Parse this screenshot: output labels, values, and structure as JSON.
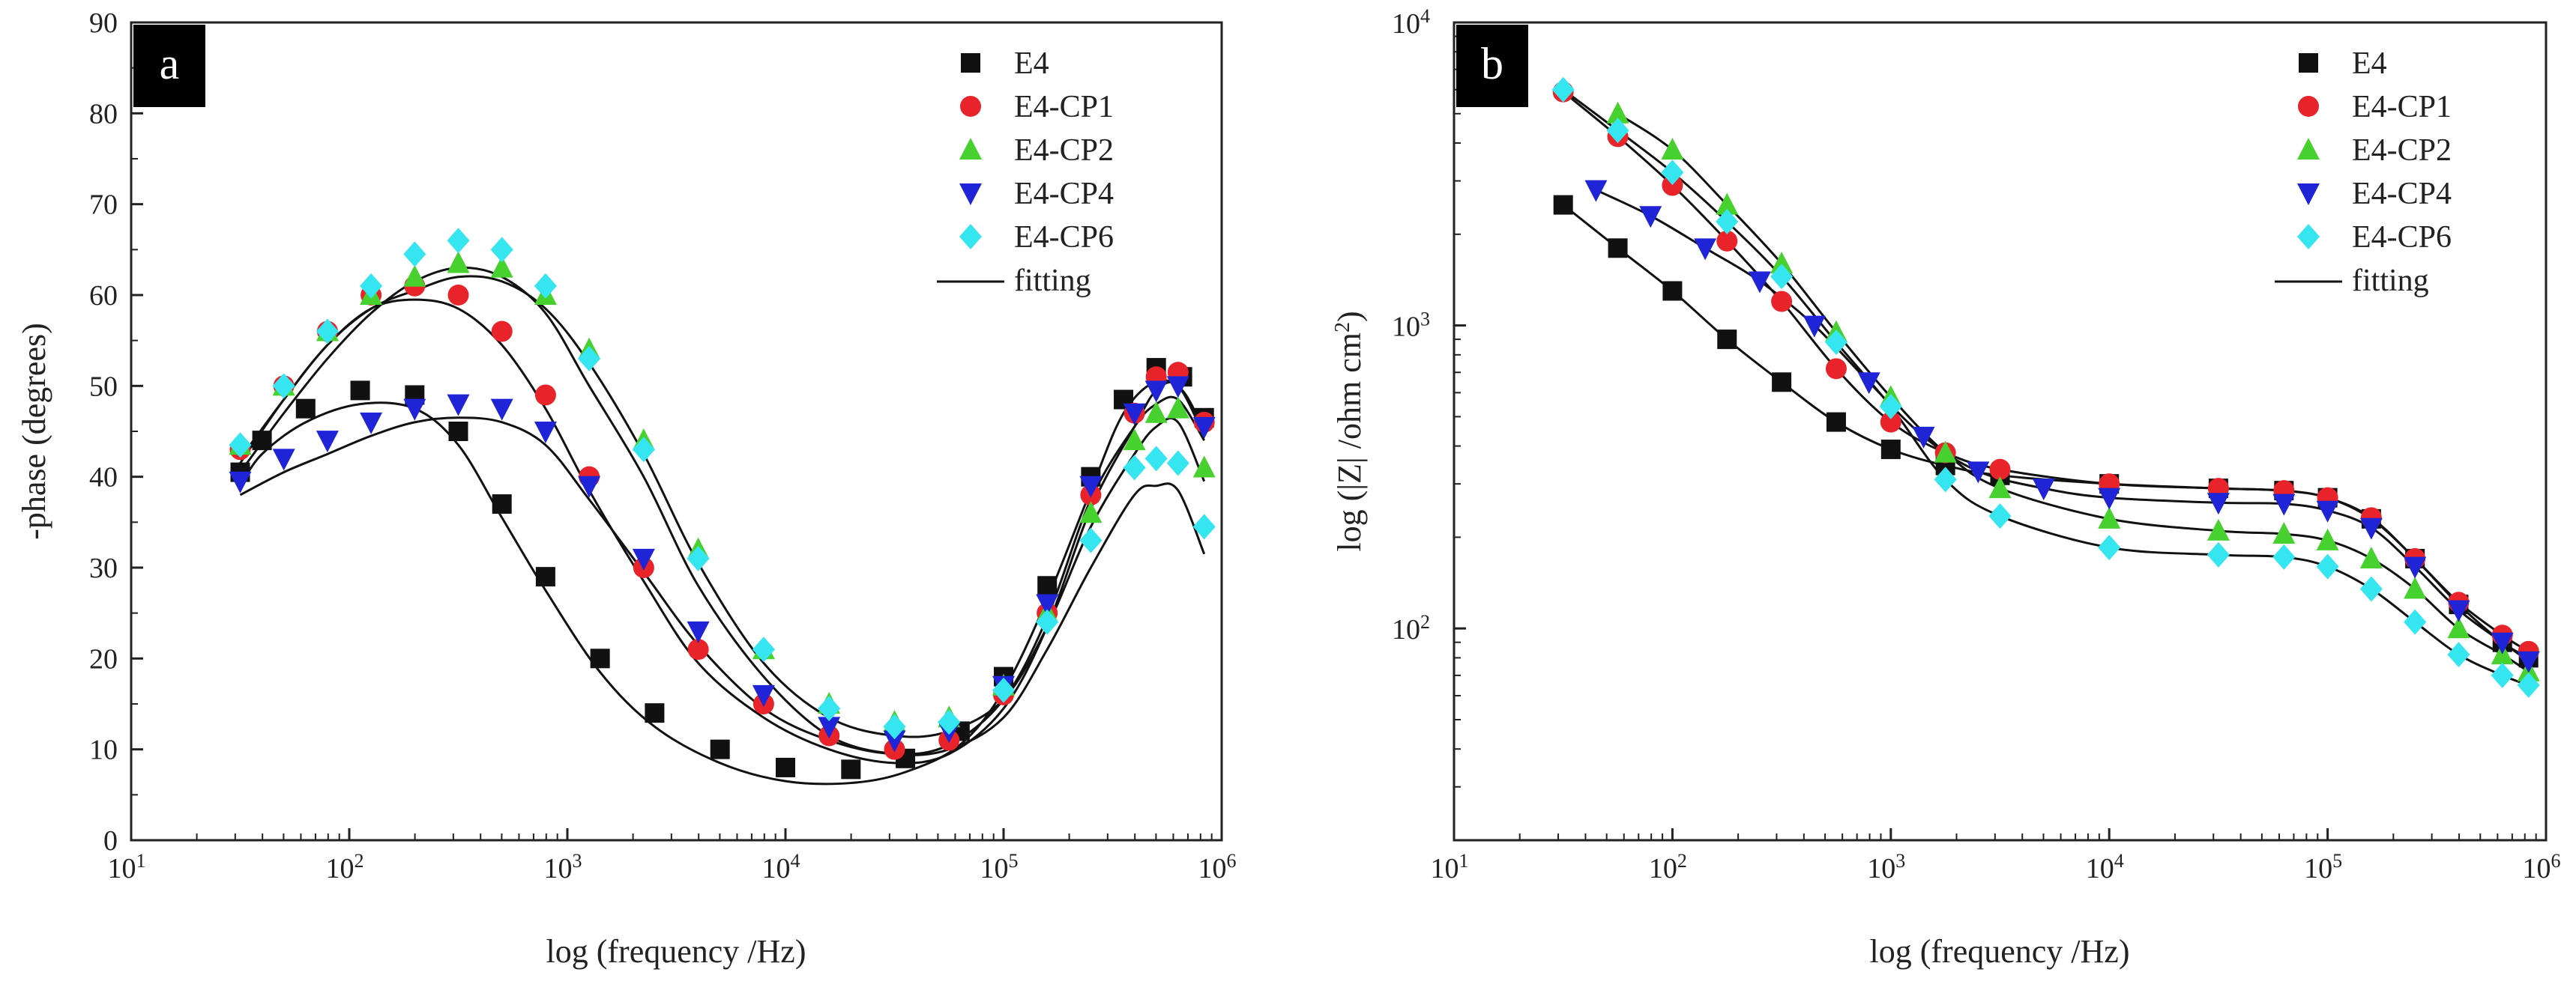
{
  "figure": {
    "panel_a_label": "a",
    "panel_b_label": "b"
  },
  "colors": {
    "E4": "#111111",
    "E4-CP1": "#e8232a",
    "E4-CP2": "#47d12f",
    "E4-CP4": "#1f24d6",
    "E4-CP6": "#35e6f0",
    "fitting": "#111111"
  },
  "chart_data": [
    {
      "type": "scatter",
      "id": "a",
      "xscale": "log",
      "xlim": [
        10,
        1000000
      ],
      "ylim": [
        0,
        90
      ],
      "xlabel": "log (frequency /Hz)",
      "ylabel": "-phase (degrees)",
      "x_tick_labels": [
        {
          "base": "10",
          "exp": "1"
        },
        {
          "base": "10",
          "exp": "2"
        },
        {
          "base": "10",
          "exp": "3"
        },
        {
          "base": "10",
          "exp": "4"
        },
        {
          "base": "10",
          "exp": "5"
        },
        {
          "base": "10",
          "exp": "6"
        }
      ],
      "y_tick_labels": [
        "0",
        "10",
        "20",
        "30",
        "40",
        "50",
        "60",
        "70",
        "80",
        "90"
      ],
      "legend": [
        "E4",
        "E4-CP1",
        "E4-CP2",
        "E4-CP4",
        "E4-CP6",
        "fitting"
      ],
      "legend_position": "top-right",
      "series": [
        {
          "name": "E4",
          "marker": "square",
          "fit_shift": -1.5,
          "points": [
            [
              1.5,
              40.5
            ],
            [
              1.6,
              44
            ],
            [
              1.8,
              47.5
            ],
            [
              2.05,
              49.5
            ],
            [
              2.3,
              49
            ],
            [
              2.5,
              45
            ],
            [
              2.7,
              37
            ],
            [
              2.9,
              29
            ],
            [
              3.15,
              20
            ],
            [
              3.4,
              14
            ],
            [
              3.7,
              10
            ],
            [
              4.0,
              8
            ],
            [
              4.3,
              7.8
            ],
            [
              4.55,
              9
            ],
            [
              4.8,
              12
            ],
            [
              5.0,
              18
            ],
            [
              5.2,
              28
            ],
            [
              5.4,
              40
            ],
            [
              5.55,
              48.5
            ],
            [
              5.7,
              52
            ],
            [
              5.82,
              51
            ],
            [
              5.92,
              46.5
            ]
          ]
        },
        {
          "name": "E4-CP1",
          "marker": "circle",
          "fit_shift": -1.5,
          "points": [
            [
              1.5,
              43
            ],
            [
              1.7,
              50
            ],
            [
              1.9,
              56
            ],
            [
              2.1,
              60
            ],
            [
              2.3,
              61
            ],
            [
              2.5,
              60
            ],
            [
              2.7,
              56
            ],
            [
              2.9,
              49
            ],
            [
              3.1,
              40
            ],
            [
              3.35,
              30
            ],
            [
              3.6,
              21
            ],
            [
              3.9,
              15
            ],
            [
              4.2,
              11.5
            ],
            [
              4.5,
              10
            ],
            [
              4.75,
              11
            ],
            [
              5.0,
              16
            ],
            [
              5.2,
              25
            ],
            [
              5.4,
              38
            ],
            [
              5.6,
              47
            ],
            [
              5.7,
              51
            ],
            [
              5.8,
              51.5
            ],
            [
              5.92,
              46
            ]
          ]
        },
        {
          "name": "E4-CP2",
          "marker": "triangle-up",
          "fit_shift": -1.5,
          "points": [
            [
              1.5,
              43.5
            ],
            [
              1.7,
              50
            ],
            [
              1.9,
              56
            ],
            [
              2.1,
              60
            ],
            [
              2.3,
              62
            ],
            [
              2.5,
              63.5
            ],
            [
              2.7,
              63
            ],
            [
              2.9,
              60
            ],
            [
              3.1,
              54
            ],
            [
              3.35,
              44
            ],
            [
              3.6,
              32
            ],
            [
              3.9,
              21
            ],
            [
              4.2,
              15
            ],
            [
              4.5,
              13
            ],
            [
              4.75,
              13.5
            ],
            [
              5.0,
              17
            ],
            [
              5.2,
              25
            ],
            [
              5.4,
              36
            ],
            [
              5.6,
              44
            ],
            [
              5.7,
              47
            ],
            [
              5.8,
              47.5
            ],
            [
              5.92,
              41
            ]
          ]
        },
        {
          "name": "E4-CP4",
          "marker": "triangle-down",
          "fit_shift": -1.5,
          "points": [
            [
              1.5,
              39.5
            ],
            [
              1.7,
              42
            ],
            [
              1.9,
              44
            ],
            [
              2.1,
              46
            ],
            [
              2.3,
              47.5
            ],
            [
              2.5,
              48
            ],
            [
              2.7,
              47.5
            ],
            [
              2.9,
              45
            ],
            [
              3.1,
              39
            ],
            [
              3.35,
              31
            ],
            [
              3.6,
              23
            ],
            [
              3.9,
              16
            ],
            [
              4.2,
              12.5
            ],
            [
              4.5,
              11
            ],
            [
              4.75,
              12
            ],
            [
              5.0,
              17
            ],
            [
              5.2,
              26
            ],
            [
              5.4,
              39
            ],
            [
              5.6,
              47
            ],
            [
              5.7,
              49.5
            ],
            [
              5.8,
              50
            ],
            [
              5.92,
              45.5
            ]
          ]
        },
        {
          "name": "E4-CP6",
          "marker": "diamond",
          "fit_shift": -3,
          "points": [
            [
              1.5,
              43.5
            ],
            [
              1.7,
              50
            ],
            [
              1.9,
              56
            ],
            [
              2.1,
              61
            ],
            [
              2.3,
              64.5
            ],
            [
              2.5,
              66
            ],
            [
              2.7,
              65
            ],
            [
              2.9,
              61
            ],
            [
              3.1,
              53
            ],
            [
              3.35,
              43
            ],
            [
              3.6,
              31
            ],
            [
              3.9,
              21
            ],
            [
              4.2,
              14.5
            ],
            [
              4.5,
              12.5
            ],
            [
              4.75,
              13
            ],
            [
              5.0,
              16.5
            ],
            [
              5.2,
              24
            ],
            [
              5.4,
              33
            ],
            [
              5.6,
              41
            ],
            [
              5.7,
              42
            ],
            [
              5.8,
              41.5
            ],
            [
              5.92,
              34.5
            ]
          ]
        }
      ]
    },
    {
      "type": "scatter",
      "id": "b",
      "xscale": "log",
      "yscale": "log",
      "xlim": [
        10,
        1000000
      ],
      "ylim": [
        20,
        10000
      ],
      "xlabel": "log (frequency /Hz)",
      "ylabel": "log (|Z| /ohm cm",
      "ylabel_superscript": "2",
      "ylabel_close": ")",
      "x_tick_labels": [
        {
          "base": "10",
          "exp": "1"
        },
        {
          "base": "10",
          "exp": "2"
        },
        {
          "base": "10",
          "exp": "3"
        },
        {
          "base": "10",
          "exp": "4"
        },
        {
          "base": "10",
          "exp": "5"
        },
        {
          "base": "10",
          "exp": "6"
        }
      ],
      "y_tick_labels": [
        {
          "base": "10",
          "exp": "2"
        },
        {
          "base": "10",
          "exp": "3"
        },
        {
          "base": "10",
          "exp": "4"
        }
      ],
      "legend": [
        "E4",
        "E4-CP1",
        "E4-CP2",
        "E4-CP4",
        "E4-CP6",
        "fitting"
      ],
      "legend_position": "top-right",
      "series": [
        {
          "name": "E4",
          "marker": "square",
          "points": [
            [
              1.5,
              2500
            ],
            [
              1.75,
              1800
            ],
            [
              2.0,
              1300
            ],
            [
              2.25,
              900
            ],
            [
              2.5,
              650
            ],
            [
              2.75,
              480
            ],
            [
              3.0,
              390
            ],
            [
              3.25,
              345
            ],
            [
              3.5,
              320
            ],
            [
              4.0,
              300
            ],
            [
              4.5,
              290
            ],
            [
              4.8,
              285
            ],
            [
              5.0,
              270
            ],
            [
              5.2,
              230
            ],
            [
              5.4,
              170
            ],
            [
              5.6,
              120
            ],
            [
              5.8,
              90
            ],
            [
              5.92,
              80
            ]
          ]
        },
        {
          "name": "E4-CP1",
          "marker": "circle",
          "points": [
            [
              1.5,
              5900
            ],
            [
              1.75,
              4200
            ],
            [
              2.0,
              2900
            ],
            [
              2.25,
              1900
            ],
            [
              2.5,
              1200
            ],
            [
              2.75,
              720
            ],
            [
              3.0,
              480
            ],
            [
              3.25,
              380
            ],
            [
              3.5,
              335
            ],
            [
              4.0,
              300
            ],
            [
              4.5,
              290
            ],
            [
              4.8,
              285
            ],
            [
              5.0,
              270
            ],
            [
              5.2,
              232
            ],
            [
              5.4,
              170
            ],
            [
              5.6,
              122
            ],
            [
              5.8,
              95
            ],
            [
              5.92,
              84
            ]
          ]
        },
        {
          "name": "E4-CP2",
          "marker": "triangle-up",
          "points": [
            [
              1.75,
              5000
            ],
            [
              2.0,
              3800
            ],
            [
              2.25,
              2500
            ],
            [
              2.5,
              1600
            ],
            [
              2.75,
              950
            ],
            [
              3.0,
              580
            ],
            [
              3.25,
              380
            ],
            [
              3.5,
              290
            ],
            [
              4.0,
              230
            ],
            [
              4.5,
              210
            ],
            [
              4.8,
              205
            ],
            [
              5.0,
              195
            ],
            [
              5.2,
              170
            ],
            [
              5.4,
              135
            ],
            [
              5.6,
              100
            ],
            [
              5.8,
              82
            ],
            [
              5.92,
              72
            ]
          ]
        },
        {
          "name": "E4-CP4",
          "marker": "triangle-down",
          "points": [
            [
              1.65,
              2800
            ],
            [
              1.9,
              2300
            ],
            [
              2.15,
              1800
            ],
            [
              2.4,
              1400
            ],
            [
              2.65,
              1000
            ],
            [
              2.9,
              650
            ],
            [
              3.15,
              430
            ],
            [
              3.4,
              330
            ],
            [
              3.7,
              290
            ],
            [
              4.0,
              270
            ],
            [
              4.5,
              260
            ],
            [
              4.8,
              258
            ],
            [
              5.0,
              245
            ],
            [
              5.2,
              215
            ],
            [
              5.4,
              160
            ],
            [
              5.6,
              115
            ],
            [
              5.8,
              90
            ],
            [
              5.92,
              78
            ]
          ]
        },
        {
          "name": "E4-CP6",
          "marker": "diamond",
          "points": [
            [
              1.5,
              6000
            ],
            [
              1.75,
              4400
            ],
            [
              2.0,
              3200
            ],
            [
              2.25,
              2200
            ],
            [
              2.5,
              1450
            ],
            [
              2.75,
              880
            ],
            [
              3.0,
              540
            ],
            [
              3.25,
              310
            ],
            [
              3.5,
              235
            ],
            [
              4.0,
              185
            ],
            [
              4.5,
              175
            ],
            [
              4.8,
              172
            ],
            [
              5.0,
              160
            ],
            [
              5.2,
              135
            ],
            [
              5.4,
              105
            ],
            [
              5.6,
              82
            ],
            [
              5.8,
              70
            ],
            [
              5.92,
              65
            ]
          ]
        }
      ]
    }
  ]
}
